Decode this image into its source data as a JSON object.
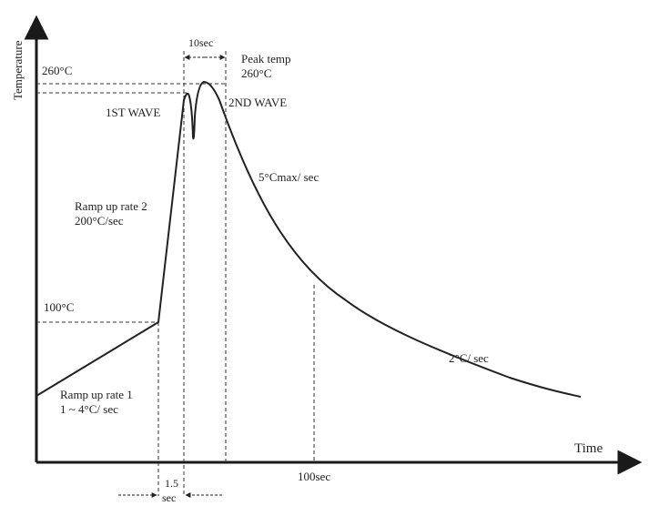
{
  "axes": {
    "y_label": "Temperature",
    "x_label": "Time"
  },
  "temperature_markers": {
    "t260": "260°C",
    "t100": "100°C"
  },
  "time_markers": {
    "t100sec": "100sec",
    "window_10sec": "10sec",
    "delay_value": "1.5",
    "delay_unit": "sec"
  },
  "peak": {
    "line1": "Peak  temp",
    "line2": "260°C"
  },
  "waves": {
    "first": "1ST WAVE",
    "second": "2ND WAVE"
  },
  "ramp_up_1": {
    "line1": "Ramp up rate 1",
    "line2": "1 ~ 4°C/ sec"
  },
  "ramp_up_2": {
    "line1": "Ramp up rate 2",
    "line2": "200°C/sec"
  },
  "cooling": {
    "fast": "5°Cmax/ sec",
    "slow": "2°C/ sec"
  },
  "colors": {
    "axis": "#1a1a1a",
    "curve": "#222222",
    "guide": "#333333",
    "text": "#222222"
  }
}
